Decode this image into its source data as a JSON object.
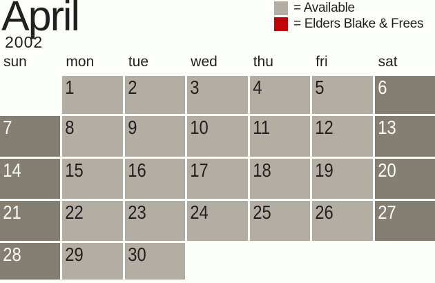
{
  "title": "April",
  "year": "2002",
  "legend": {
    "items": [
      {
        "label": "= Available",
        "swatch_color": "#b3ada4"
      },
      {
        "label": "= Elders Blake & Frees",
        "swatch_color": "#c00408"
      }
    ]
  },
  "weekdays": [
    "sun",
    "mon",
    "tue",
    "wed",
    "thu",
    "fri",
    "sat"
  ],
  "weeks": [
    [
      {
        "day": "",
        "state": "empty"
      },
      {
        "day": "1",
        "state": "available"
      },
      {
        "day": "2",
        "state": "available"
      },
      {
        "day": "3",
        "state": "available"
      },
      {
        "day": "4",
        "state": "available"
      },
      {
        "day": "5",
        "state": "available"
      },
      {
        "day": "6",
        "state": "weekend"
      }
    ],
    [
      {
        "day": "7",
        "state": "weekend"
      },
      {
        "day": "8",
        "state": "available"
      },
      {
        "day": "9",
        "state": "available"
      },
      {
        "day": "10",
        "state": "available"
      },
      {
        "day": "11",
        "state": "available"
      },
      {
        "day": "12",
        "state": "available"
      },
      {
        "day": "13",
        "state": "weekend"
      }
    ],
    [
      {
        "day": "14",
        "state": "weekend"
      },
      {
        "day": "15",
        "state": "available"
      },
      {
        "day": "16",
        "state": "available"
      },
      {
        "day": "17",
        "state": "available"
      },
      {
        "day": "18",
        "state": "available"
      },
      {
        "day": "19",
        "state": "available"
      },
      {
        "day": "20",
        "state": "weekend"
      }
    ],
    [
      {
        "day": "21",
        "state": "weekend"
      },
      {
        "day": "22",
        "state": "available"
      },
      {
        "day": "23",
        "state": "available"
      },
      {
        "day": "24",
        "state": "available"
      },
      {
        "day": "25",
        "state": "available"
      },
      {
        "day": "26",
        "state": "available"
      },
      {
        "day": "27",
        "state": "weekend"
      }
    ],
    [
      {
        "day": "28",
        "state": "weekend"
      },
      {
        "day": "29",
        "state": "available"
      },
      {
        "day": "30",
        "state": "available"
      },
      {
        "day": "",
        "state": "empty"
      },
      {
        "day": "",
        "state": "empty"
      },
      {
        "day": "",
        "state": "empty"
      },
      {
        "day": "",
        "state": "empty"
      }
    ]
  ],
  "colors": {
    "background": "#fcfefa",
    "text": "#221f20",
    "available_cell": "#b3ada4",
    "weekend_cell": "#857e73",
    "booked": "#c00408",
    "day_number_on_dark": "#fdfffa"
  }
}
